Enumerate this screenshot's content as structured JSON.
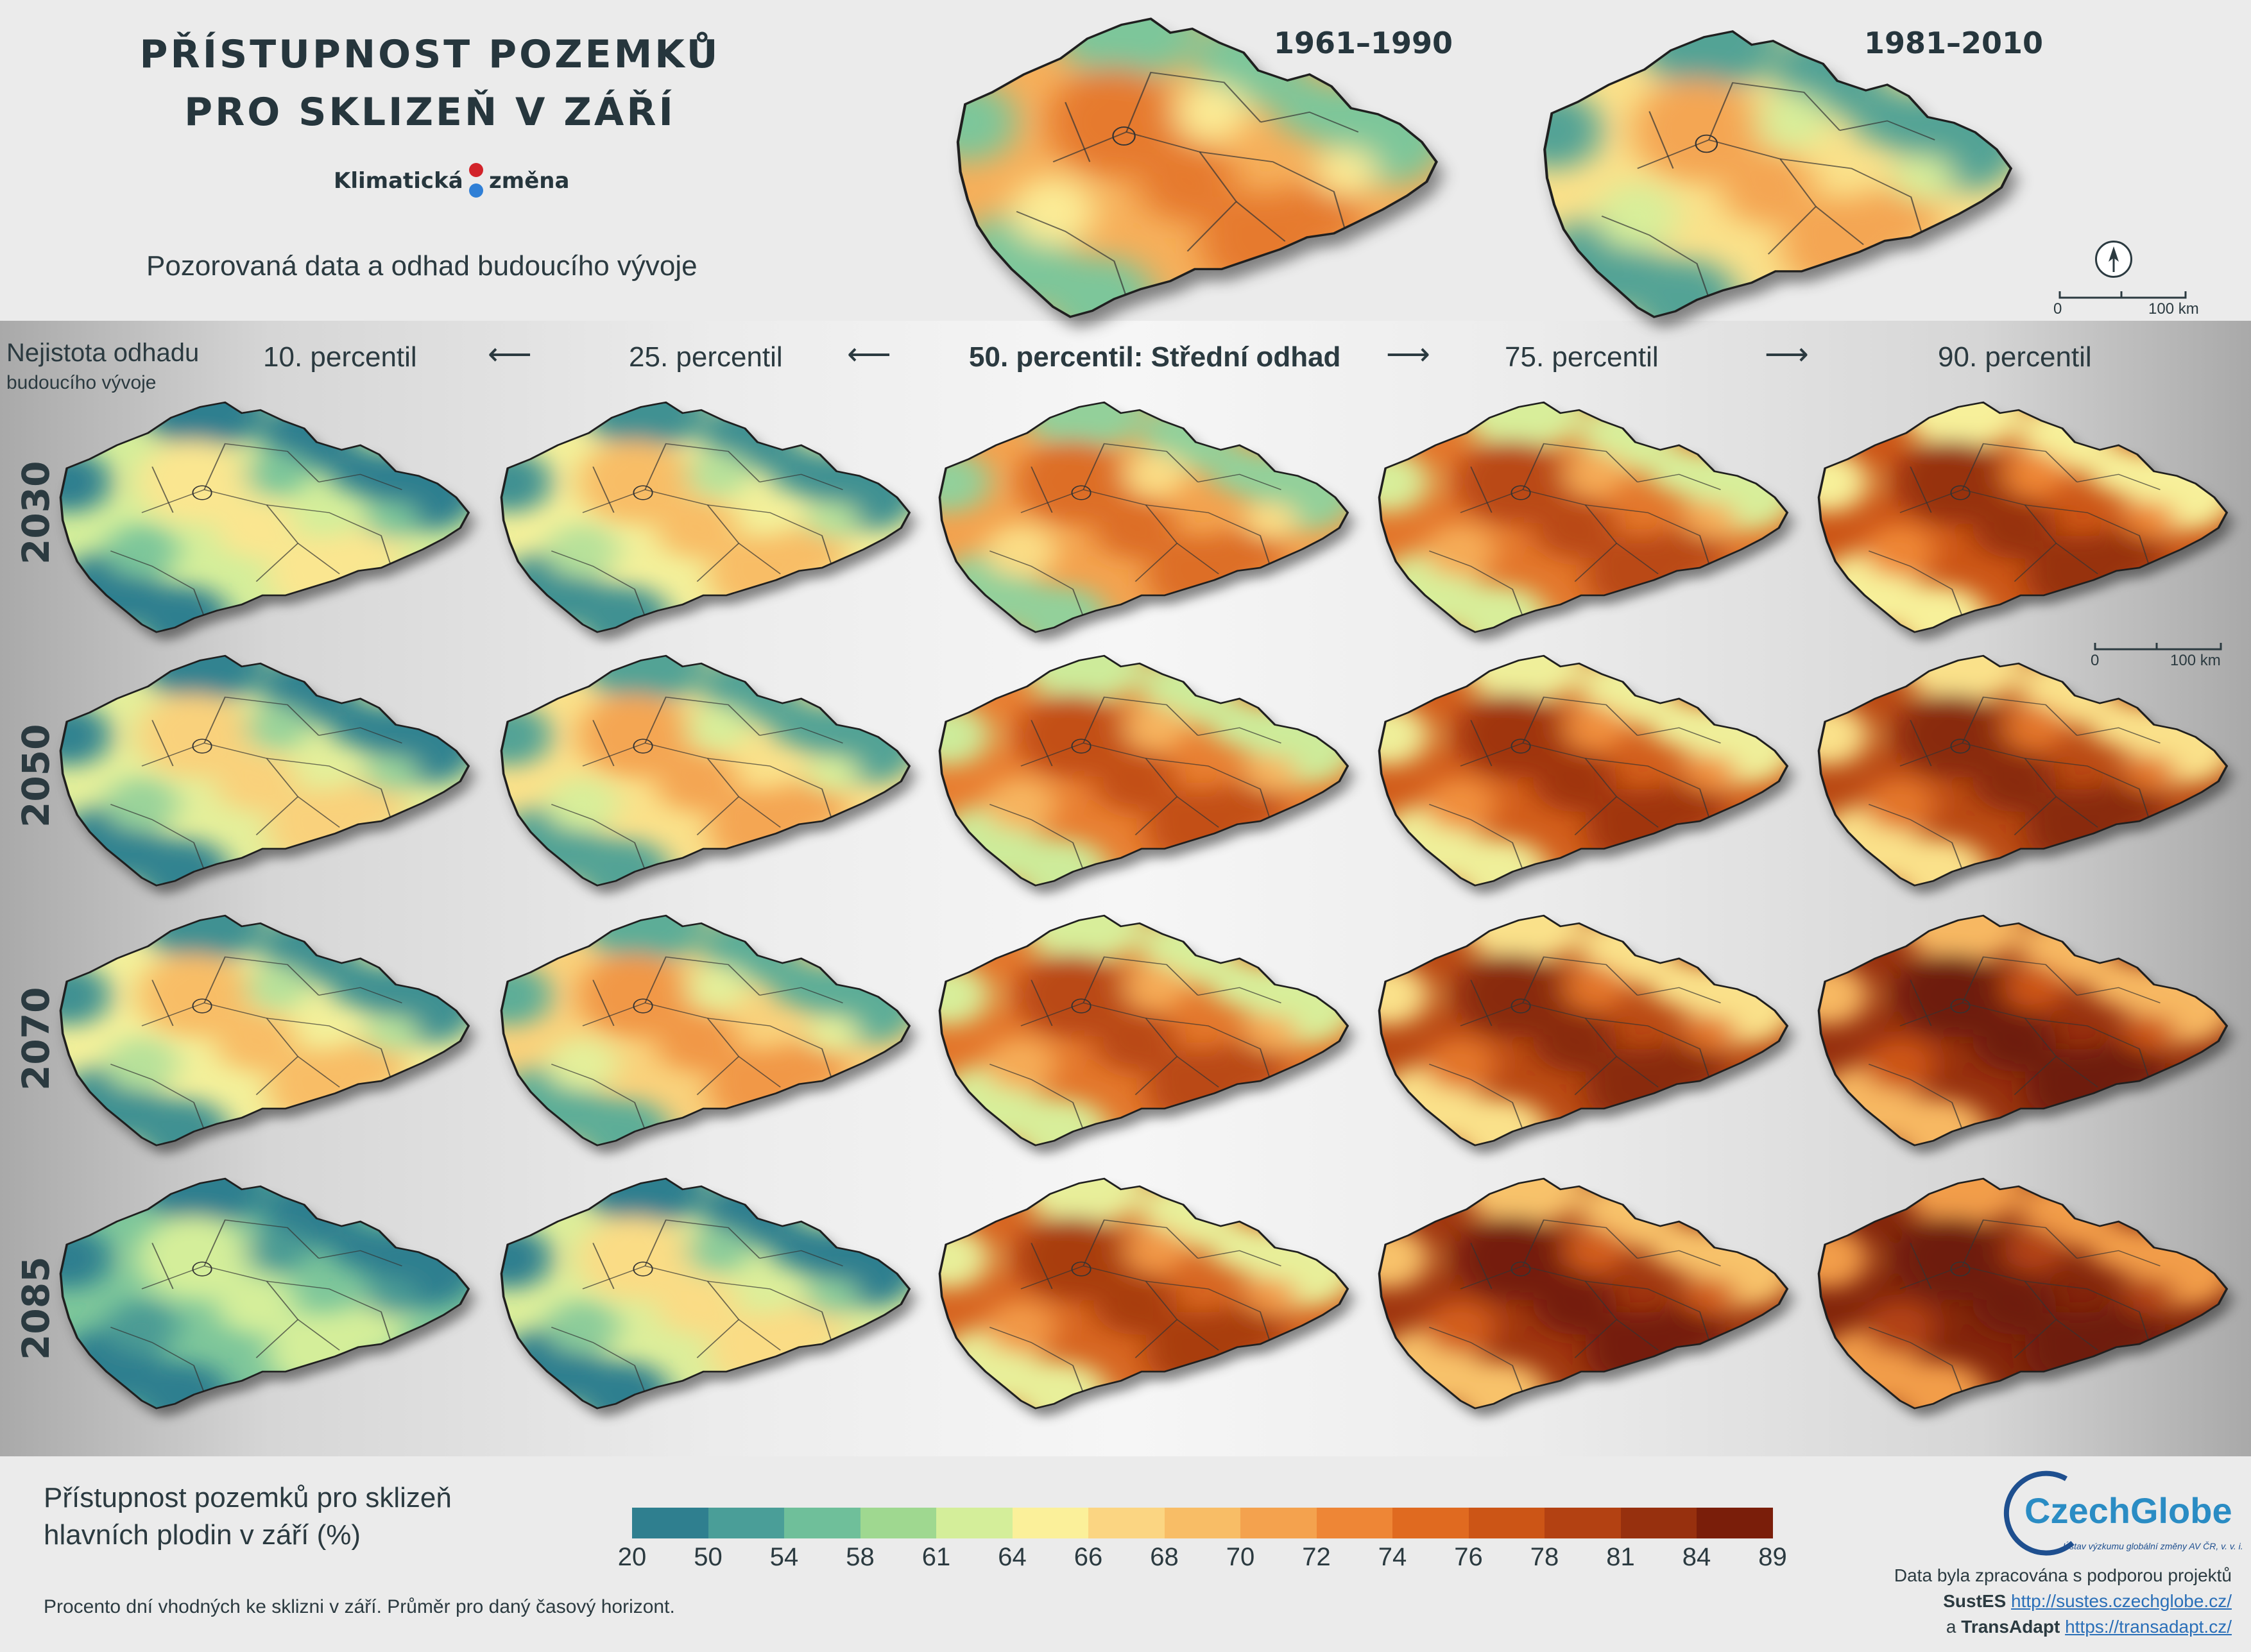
{
  "title_line1": "PŘÍSTUPNOST POZEMKŮ",
  "title_line2": "PRO SKLIZEŇ V ZÁŘÍ",
  "brand_left": "Klimatická",
  "brand_right": "změna",
  "subtitle": "Pozorovaná data a odhad budoucího vývoje",
  "periods": [
    "1961–1990",
    "1981–2010"
  ],
  "scale_bar": {
    "start": "0",
    "end": "100 km"
  },
  "uncertainty_label": "Nejistota odhadu",
  "uncertainty_sublabel": "budoucího vývoje",
  "percentiles": [
    "10. percentil",
    "25. percentil",
    "50. percentil: Střední odhad",
    "75. percentil",
    "90. percentil"
  ],
  "years": [
    "2030",
    "2050",
    "2070",
    "2085"
  ],
  "legend": {
    "title_line1": "Přístupnost pozemků pro sklizeň",
    "title_line2": "hlavních plodin v září (%)",
    "note": "Procento dní vhodných ke sklizni v září. Průměr pro daný časový horizont.",
    "ticks": [
      "20",
      "50",
      "54",
      "58",
      "61",
      "64",
      "66",
      "68",
      "70",
      "72",
      "74",
      "76",
      "78",
      "81",
      "84",
      "89"
    ],
    "colors": [
      "#2f7f8f",
      "#4a9e98",
      "#6fbf9a",
      "#9fd890",
      "#d4ee9a",
      "#fbf09a",
      "#fbd582",
      "#f8bd66",
      "#f4a24e",
      "#ee8636",
      "#e06a20",
      "#cc5516",
      "#b34112",
      "#97300e",
      "#7a1e0a"
    ]
  },
  "logo": {
    "name": "CzechGlobe",
    "tagline": "Ústav výzkumu globální změny AV ČR, v. v. i."
  },
  "credits": {
    "line1": "Data byla zpracována s podporou projektů",
    "project1": "SustES",
    "link1": "http://sustes.czechglobe.cz/",
    "and": "a",
    "project2": "TransAdapt",
    "link2": "https://transadapt.cz/"
  },
  "maps": {
    "observed_intensity": [
      0.55,
      0.45
    ],
    "projection_intensity": [
      [
        0.32,
        0.4,
        0.58,
        0.68,
        0.76
      ],
      [
        0.36,
        0.45,
        0.66,
        0.74,
        0.8
      ],
      [
        0.4,
        0.48,
        0.68,
        0.8,
        0.88
      ],
      [
        0.2,
        0.34,
        0.72,
        0.86,
        0.94
      ]
    ]
  }
}
